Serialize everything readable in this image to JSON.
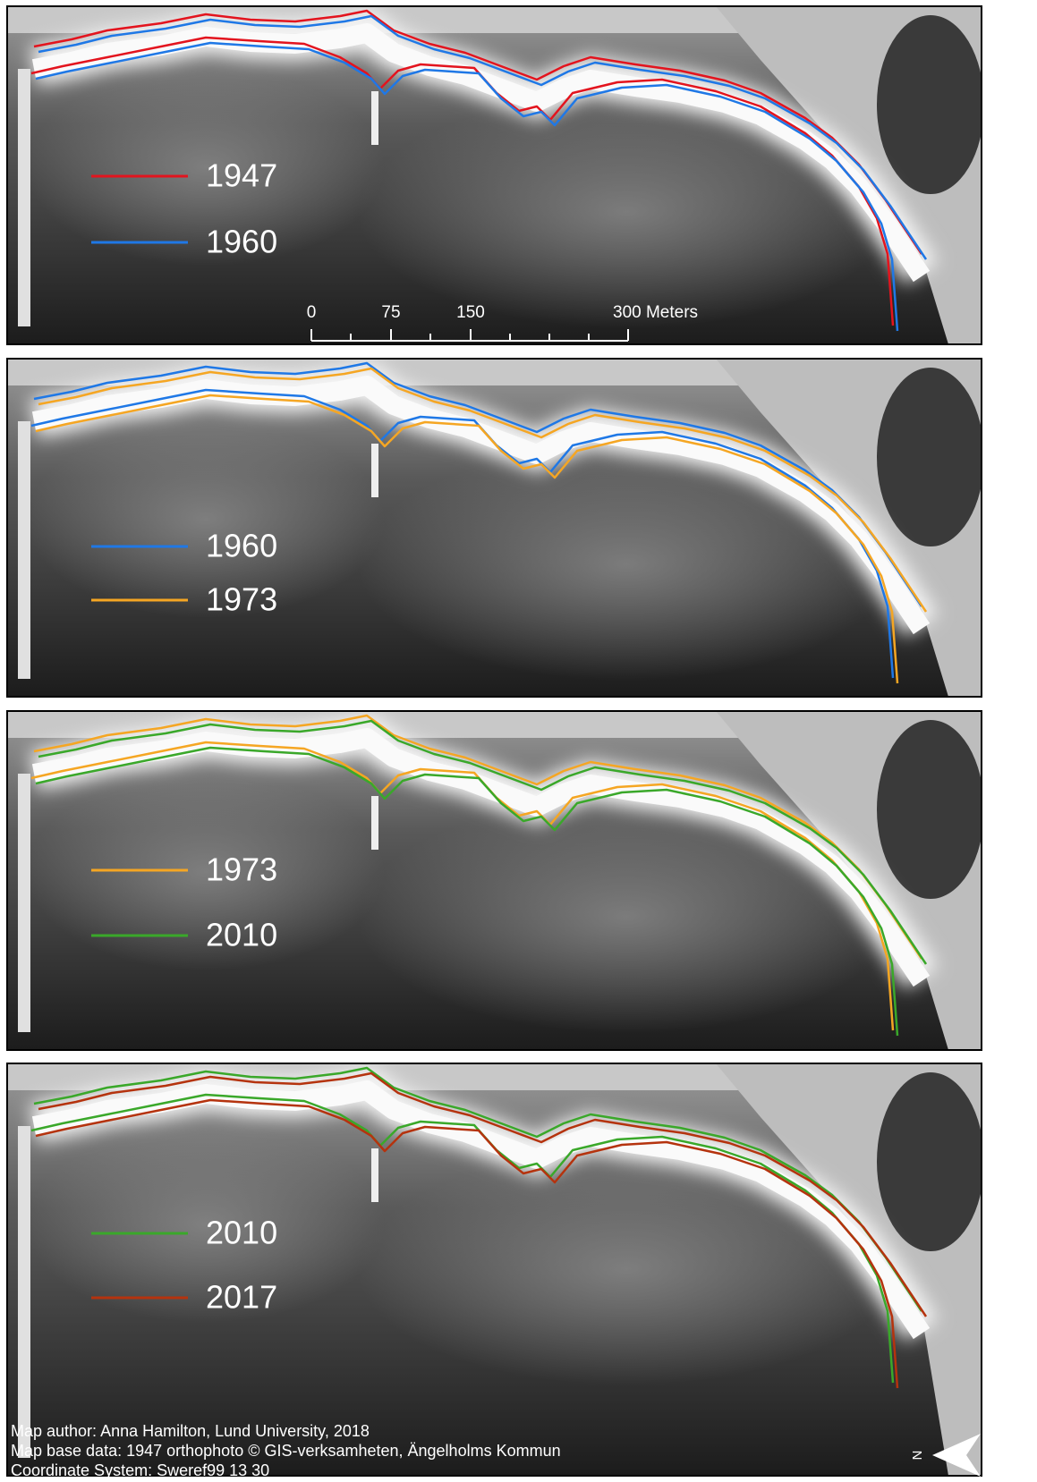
{
  "panels": [
    {
      "legend": [
        {
          "year": "1947",
          "color": "#e3141e"
        },
        {
          "year": "1960",
          "color": "#1f78e6"
        }
      ]
    },
    {
      "legend": [
        {
          "year": "1960",
          "color": "#1f78e6"
        },
        {
          "year": "1973",
          "color": "#f5a623"
        }
      ]
    },
    {
      "legend": [
        {
          "year": "1973",
          "color": "#f5a623"
        },
        {
          "year": "2010",
          "color": "#3aa82a"
        }
      ]
    },
    {
      "legend": [
        {
          "year": "2010",
          "color": "#3aa82a"
        },
        {
          "year": "2017",
          "color": "#b5330e"
        }
      ]
    }
  ],
  "scale_bar": {
    "labels": [
      "0",
      "75",
      "150",
      "300 Meters"
    ]
  },
  "credits": [
    "Map author: Anna Hamilton, Lund University, 2018",
    "Map base data: 1947 orthophoto © GIS-verksamheten, Ängelholms Kommun",
    "Coordinate System: Sweref99 13 30"
  ],
  "north_arrow": {
    "label": "N"
  }
}
